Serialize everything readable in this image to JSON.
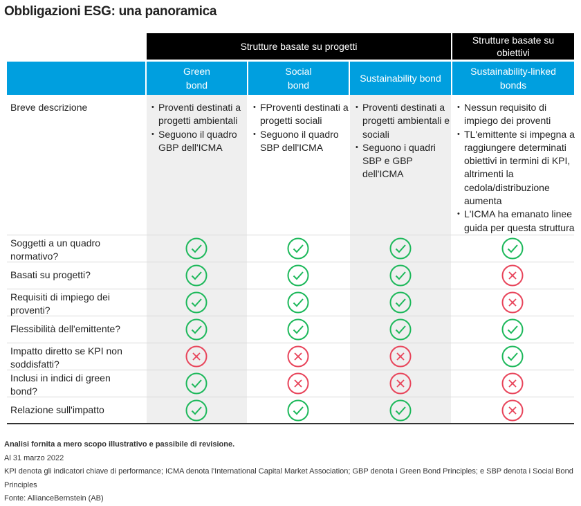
{
  "title": "Obbligazioni ESG: una panoramica",
  "groups": {
    "project": "Strutture basate su progetti",
    "objective": "Strutture basate su obiettivi"
  },
  "columns": [
    "Green bond",
    "Social bond",
    "Sustainability bond",
    "Sustainability-linked bonds"
  ],
  "description": {
    "label": "Breve descrizione",
    "cells": [
      [
        "Proventi destinati a progetti ambientali",
        "Seguono il quadro GBP dell'ICMA"
      ],
      [
        "FProventi destinati a progetti sociali",
        "Seguono il quadro SBP dell'ICMA"
      ],
      [
        "Proventi destinati a progetti ambientali e sociali",
        "Seguono i quadri SBP e GBP dell'ICMA"
      ],
      [
        "Nessun requisito di impiego dei proventi",
        "TL'emittente si impegna a raggiungere determinati obiettivi in termini di KPI, altrimenti la cedola/distribuzione aumenta",
        "L'ICMA ha emanato linee guida per questa struttura"
      ]
    ]
  },
  "rows": [
    {
      "label": "Soggetti a un quadro normativo?",
      "values": [
        true,
        true,
        true,
        true
      ]
    },
    {
      "label": "Basati su progetti?",
      "values": [
        true,
        true,
        true,
        false
      ]
    },
    {
      "label": "Requisiti di impiego dei proventi?",
      "values": [
        true,
        true,
        true,
        false
      ]
    },
    {
      "label": "Flessibilità dell'emittente?",
      "values": [
        true,
        true,
        true,
        true
      ]
    },
    {
      "label": "Impatto diretto se KPI non soddisfatti?",
      "values": [
        false,
        false,
        false,
        true
      ]
    },
    {
      "label": "Inclusi in indici di green bond?",
      "values": [
        true,
        false,
        false,
        false
      ]
    },
    {
      "label": "Relazione sull'impatto",
      "values": [
        true,
        true,
        true,
        false
      ]
    }
  ],
  "notes": {
    "disclaimer": "Analisi fornita a mero scopo illustrativo e passibile di revisione.",
    "date": "Al 31 marzo 2022",
    "definitions": "KPI denota gli indicatori chiave di performance; ICMA denota l'International Capital Market Association; GBP denota i Green Bond Principles; e SBP denota i Social Bond Principles",
    "source": "Fonte: AllianceBernstein (AB)"
  },
  "colors": {
    "header_blue": "#009fdf",
    "check_green": "#1cb85a",
    "cross_red": "#e8445a",
    "shade": "#efefef"
  },
  "icons": {
    "yes": "check-circle-icon",
    "no": "x-circle-icon"
  }
}
